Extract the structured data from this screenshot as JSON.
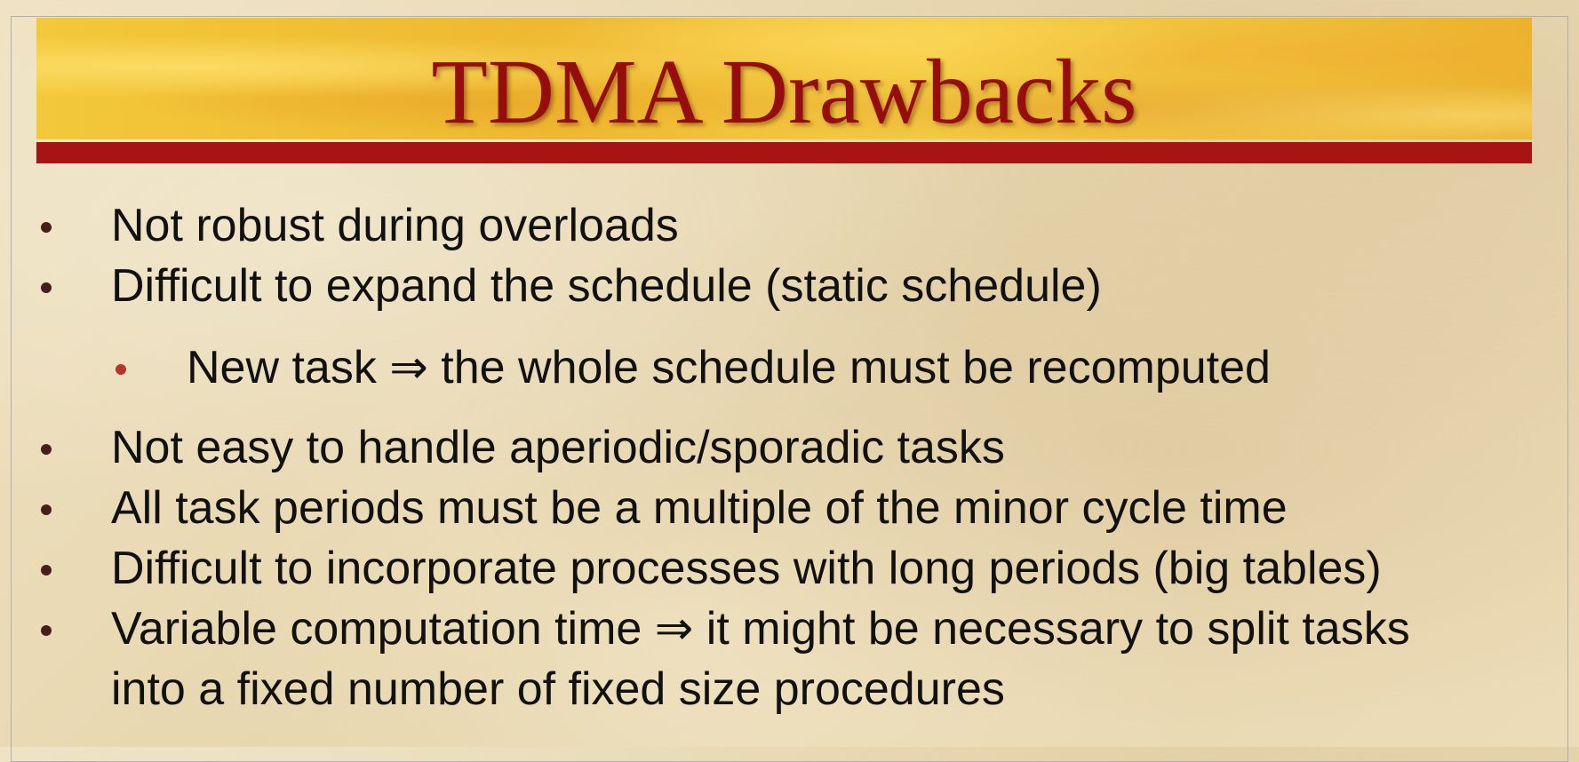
{
  "slide": {
    "title": "TDMA Drawbacks",
    "bullets": [
      {
        "level": 1,
        "text": "Not robust during overloads"
      },
      {
        "level": 1,
        "text": "Difficult to expand the schedule (static schedule)"
      },
      {
        "level": 2,
        "text": "New task ⇒ the whole schedule must be recomputed"
      },
      {
        "level": 1,
        "text": "Not easy to handle aperiodic/sporadic tasks"
      },
      {
        "level": 1,
        "text": "All task periods must be a multiple of the minor cycle time"
      },
      {
        "level": 1,
        "text": "Difficult to incorporate processes with long periods (big tables)"
      },
      {
        "level": 1,
        "text": "Variable computation time ⇒ it might be necessary to split tasks"
      },
      {
        "level": 0,
        "text": "into a fixed number of fixed size procedures"
      }
    ]
  },
  "colors": {
    "title_text": "#960d0d",
    "title_underline": "#a81414",
    "banner": "#f1c234",
    "bullet_level1": "#4a1d1d",
    "bullet_level2": "#b8342a",
    "body_text": "#111111"
  }
}
